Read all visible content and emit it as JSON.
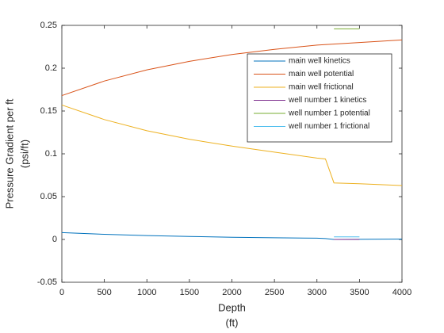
{
  "chart_data": {
    "type": "line",
    "xlabel": [
      "Depth",
      "(ft)"
    ],
    "ylabel": [
      "Pressure Gradient per ft",
      "(psi/ft)"
    ],
    "xlim": [
      0,
      4000
    ],
    "xticks": [
      0,
      500,
      1000,
      1500,
      2000,
      2500,
      3000,
      3500,
      4000
    ],
    "ylim": [
      -0.05,
      0.25
    ],
    "yticks": [
      -0.05,
      0,
      0.05,
      0.1,
      0.15,
      0.2,
      0.25
    ],
    "grid": false,
    "legend": "northeast",
    "series": [
      {
        "name": "main well kinetics",
        "color": "#0072bd",
        "x": [
          0,
          500,
          1000,
          1500,
          2000,
          2500,
          3000,
          3100,
          3200,
          4000
        ],
        "values": [
          0.008,
          0.006,
          0.0045,
          0.0035,
          0.0025,
          0.002,
          0.0015,
          0.001,
          0,
          0.0005
        ]
      },
      {
        "name": "main well potential",
        "color": "#d95319",
        "x": [
          0,
          500,
          1000,
          1500,
          2000,
          2500,
          3000,
          3500,
          4000
        ],
        "values": [
          0.168,
          0.185,
          0.198,
          0.208,
          0.216,
          0.222,
          0.227,
          0.23,
          0.233
        ]
      },
      {
        "name": "main well frictional",
        "color": "#edb120",
        "x": [
          0,
          500,
          1000,
          1500,
          2000,
          2500,
          3000,
          3100,
          3200,
          3500,
          4000
        ],
        "values": [
          0.157,
          0.14,
          0.127,
          0.117,
          0.109,
          0.102,
          0.095,
          0.094,
          0.066,
          0.065,
          0.063
        ]
      },
      {
        "name": "well number 1 kinetics",
        "color": "#7e2f8e",
        "x": [
          3200,
          3500
        ],
        "values": [
          0,
          0
        ]
      },
      {
        "name": "well number 1 potential",
        "color": "#77ac30",
        "x": [
          3200,
          3500
        ],
        "values": [
          0.246,
          0.246
        ]
      },
      {
        "name": "well number 1 frictional",
        "color": "#4dbeee",
        "x": [
          3200,
          3500
        ],
        "values": [
          0.003,
          0.003
        ]
      }
    ]
  }
}
